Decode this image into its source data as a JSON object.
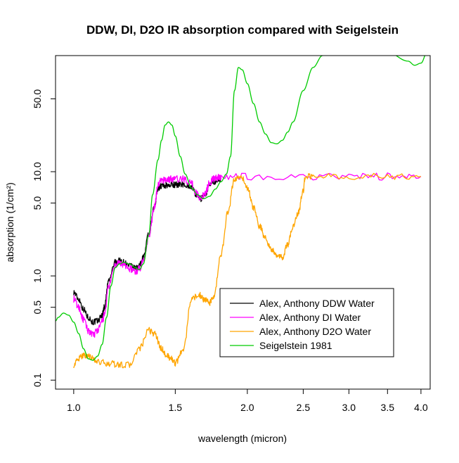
{
  "chart_data": {
    "type": "line",
    "title": "DDW, DI, D2O IR absorption compared with Seigelstein",
    "xlabel": "wavelength (micron)",
    "ylabel": "absorption (1/cm²)",
    "x_scale": "log",
    "y_scale": "log",
    "xlim": [
      0.93,
      4.15
    ],
    "ylim": [
      0.082,
      130
    ],
    "x_ticks": [
      1.0,
      1.5,
      2.0,
      2.5,
      3.0,
      3.5,
      4.0
    ],
    "x_tick_labels": [
      "1.0",
      "1.5",
      "2.0",
      "2.5",
      "3.0",
      "3.5",
      "4.0"
    ],
    "y_ticks": [
      0.1,
      0.5,
      1.0,
      5.0,
      10.0,
      50.0
    ],
    "y_tick_labels": [
      "0.1",
      "0.5",
      "1.0",
      "5.0",
      "10.0",
      "50.0"
    ],
    "grid": false,
    "legend_position": "bottom-right",
    "series": [
      {
        "name": "Alex, Anthony DDW Water",
        "color": "#000000",
        "noise": 0.03,
        "x": [
          1.0,
          1.02,
          1.04,
          1.06,
          1.08,
          1.1,
          1.12,
          1.13,
          1.15,
          1.18,
          1.2,
          1.22,
          1.25,
          1.28,
          1.3,
          1.32,
          1.35,
          1.38,
          1.4,
          1.42,
          1.45,
          1.48,
          1.5,
          1.55,
          1.6,
          1.63,
          1.66,
          1.69,
          1.72,
          1.75,
          1.78,
          1.8
        ],
        "y": [
          0.7,
          0.6,
          0.48,
          0.4,
          0.36,
          0.37,
          0.42,
          0.5,
          0.9,
          1.35,
          1.4,
          1.35,
          1.25,
          1.18,
          1.25,
          1.5,
          2.5,
          4.5,
          7.0,
          7.3,
          7.4,
          7.5,
          7.5,
          7.6,
          7.2,
          6.0,
          5.5,
          6.0,
          7.5,
          8.0,
          8.3,
          8.5
        ]
      },
      {
        "name": "Alex, Anthony DI Water",
        "color": "#ff00ff",
        "noise": 0.035,
        "x": [
          1.0,
          1.02,
          1.04,
          1.06,
          1.08,
          1.1,
          1.12,
          1.13,
          1.15,
          1.18,
          1.2,
          1.22,
          1.25,
          1.28,
          1.3,
          1.32,
          1.35,
          1.38,
          1.4,
          1.42,
          1.45,
          1.48,
          1.5,
          1.55,
          1.6,
          1.63,
          1.66,
          1.69,
          1.72,
          1.75,
          1.78,
          1.8,
          2.0,
          2.5,
          3.0,
          3.5,
          4.0
        ],
        "y": [
          0.6,
          0.5,
          0.38,
          0.3,
          0.27,
          0.3,
          0.36,
          0.42,
          0.8,
          1.25,
          1.32,
          1.28,
          1.18,
          1.1,
          1.18,
          1.4,
          2.4,
          4.5,
          7.5,
          8.3,
          8.4,
          8.5,
          8.5,
          8.5,
          7.8,
          6.2,
          5.6,
          6.2,
          7.8,
          8.6,
          8.8,
          9.0,
          9.0,
          9.0,
          9.0,
          9.0,
          9.0
        ]
      },
      {
        "name": "Alex, Anthony D2O Water",
        "color": "#ffa500",
        "noise": 0.03,
        "x": [
          1.0,
          1.02,
          1.04,
          1.06,
          1.08,
          1.1,
          1.15,
          1.2,
          1.25,
          1.3,
          1.35,
          1.38,
          1.42,
          1.45,
          1.48,
          1.5,
          1.55,
          1.6,
          1.65,
          1.68,
          1.72,
          1.75,
          1.8,
          1.85,
          1.9,
          1.95,
          2.0,
          2.05,
          2.1,
          2.15,
          2.2,
          2.25,
          2.3,
          2.35,
          2.4,
          2.45,
          2.5,
          2.52,
          2.6,
          3.0,
          3.5,
          4.0
        ],
        "y": [
          0.14,
          0.16,
          0.175,
          0.17,
          0.16,
          0.15,
          0.145,
          0.14,
          0.14,
          0.2,
          0.3,
          0.28,
          0.2,
          0.17,
          0.16,
          0.145,
          0.2,
          0.6,
          0.66,
          0.6,
          0.55,
          0.62,
          1.6,
          4.0,
          8.5,
          9.0,
          7.0,
          4.5,
          3.0,
          2.3,
          1.8,
          1.55,
          1.5,
          2.0,
          3.0,
          4.0,
          6.5,
          9.0,
          9.0,
          9.0,
          9.0,
          9.0
        ]
      },
      {
        "name": "Seigelstein 1981",
        "color": "#00cc00",
        "noise": 0,
        "x": [
          0.93,
          0.94,
          0.96,
          0.98,
          1.0,
          1.02,
          1.04,
          1.06,
          1.08,
          1.1,
          1.12,
          1.14,
          1.16,
          1.18,
          1.2,
          1.22,
          1.25,
          1.28,
          1.3,
          1.32,
          1.35,
          1.37,
          1.4,
          1.42,
          1.44,
          1.46,
          1.48,
          1.5,
          1.53,
          1.56,
          1.6,
          1.64,
          1.68,
          1.72,
          1.76,
          1.8,
          1.84,
          1.87,
          1.9,
          1.93,
          1.96,
          2.0,
          2.05,
          2.1,
          2.15,
          2.2,
          2.25,
          2.3,
          2.35,
          2.4,
          2.5,
          2.6,
          2.7,
          2.75,
          3.0,
          3.5,
          3.8,
          3.9,
          4.0,
          4.1
        ],
        "y": [
          0.37,
          0.4,
          0.44,
          0.42,
          0.36,
          0.28,
          0.2,
          0.16,
          0.155,
          0.17,
          0.22,
          0.4,
          0.8,
          1.2,
          1.3,
          1.35,
          1.3,
          1.2,
          1.15,
          1.3,
          2.5,
          6.0,
          13.0,
          20.0,
          28.0,
          30.0,
          28.0,
          22.0,
          14.0,
          9.5,
          7.0,
          6.0,
          5.5,
          5.8,
          6.8,
          8.0,
          9.5,
          14.0,
          60.0,
          100.0,
          95.0,
          70.0,
          45.0,
          30.0,
          23.0,
          19.0,
          18.5,
          20.0,
          24.0,
          30.0,
          60.0,
          100.0,
          130.0,
          140.0,
          140.0,
          140.0,
          115.0,
          105.0,
          110.0,
          140.0
        ]
      }
    ]
  }
}
